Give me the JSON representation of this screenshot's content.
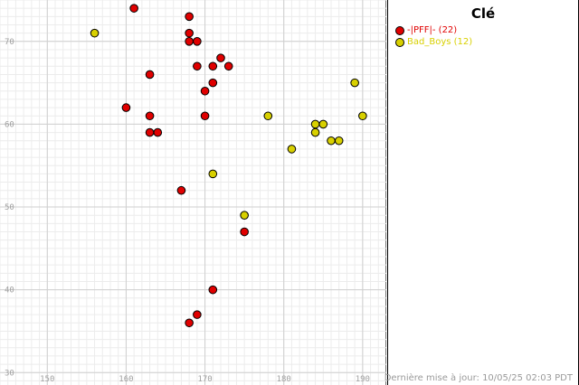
{
  "chart_data": {
    "type": "scatter",
    "xlim": [
      144,
      193
    ],
    "ylim": [
      28.5,
      75
    ],
    "x_ticks": [
      150,
      160,
      170,
      180,
      190
    ],
    "y_ticks": [
      30,
      40,
      50,
      60,
      70
    ],
    "grid": true,
    "legend_placement": "right-panel",
    "series": [
      {
        "name": "-|PFF|- (22)",
        "color": "#e00000",
        "points": [
          [
            161,
            74
          ],
          [
            168,
            73
          ],
          [
            168,
            71
          ],
          [
            168,
            70
          ],
          [
            169,
            70
          ],
          [
            172,
            68
          ],
          [
            169,
            67
          ],
          [
            171,
            67
          ],
          [
            173,
            67
          ],
          [
            163,
            66
          ],
          [
            171,
            65
          ],
          [
            170,
            64
          ],
          [
            160,
            62
          ],
          [
            163,
            61
          ],
          [
            170,
            61
          ],
          [
            163,
            59
          ],
          [
            164,
            59
          ],
          [
            167,
            52
          ],
          [
            175,
            47
          ],
          [
            171,
            40
          ],
          [
            169,
            37
          ],
          [
            168,
            36
          ]
        ]
      },
      {
        "name": "Bad_Boys (12)",
        "color": "#d8d000",
        "points": [
          [
            156,
            71
          ],
          [
            189,
            65
          ],
          [
            178,
            61
          ],
          [
            190,
            61
          ],
          [
            184,
            60
          ],
          [
            185,
            60
          ],
          [
            184,
            59
          ],
          [
            186,
            58
          ],
          [
            187,
            58
          ],
          [
            181,
            57
          ],
          [
            171,
            54
          ],
          [
            175,
            49
          ]
        ]
      }
    ]
  },
  "legend": {
    "title": "Clé",
    "items": [
      {
        "label": "-|PFF|- (22)",
        "color": "#e00000"
      },
      {
        "label": "Bad_Boys (12)",
        "color": "#d8d000"
      }
    ]
  },
  "footer": {
    "last_updated": "Dernière mise à jour: 10/05/25 02:03 PDT"
  }
}
